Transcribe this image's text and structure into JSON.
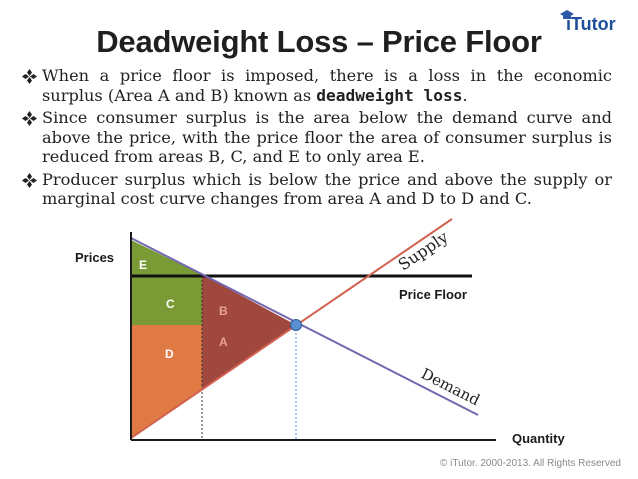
{
  "slide": {
    "title": "Deadweight Loss – Price Floor",
    "logo": {
      "brand": "iTutor"
    },
    "footer": "© iTutor. 2000-2013. All Rights Reserved"
  },
  "bullets": [
    {
      "text": "When a price floor is imposed, there is a loss in the economic surplus (Area A and B) known as ",
      "emphasis": "deadweight loss",
      "tail": "."
    },
    {
      "text": "Since consumer surplus is the area below the demand curve and above the price, with the price floor the area of consumer surplus is reduced from areas B, C, and E to only area E."
    },
    {
      "text": "Producer surplus which is below the price and above the supply or marginal cost curve changes from area A and D to D and C."
    }
  ],
  "diagram": {
    "y_axis_label": "Prices",
    "x_axis_label": "Quantity",
    "supply_label": "Supply",
    "demand_label": "Demand",
    "price_floor_label": "Price Floor",
    "areas": {
      "E": "E",
      "C": "C",
      "B": "B",
      "A": "A",
      "D": "D"
    },
    "colors": {
      "E": "#7a9a36",
      "C": "#7a9a36",
      "B": "#a0473e",
      "A": "#a0473e",
      "D": "#e07a45",
      "supply": "#d2614f",
      "demand": "#7468b0",
      "equilibrium": "#5b8fd0",
      "axes": "#1a1a1a"
    }
  }
}
